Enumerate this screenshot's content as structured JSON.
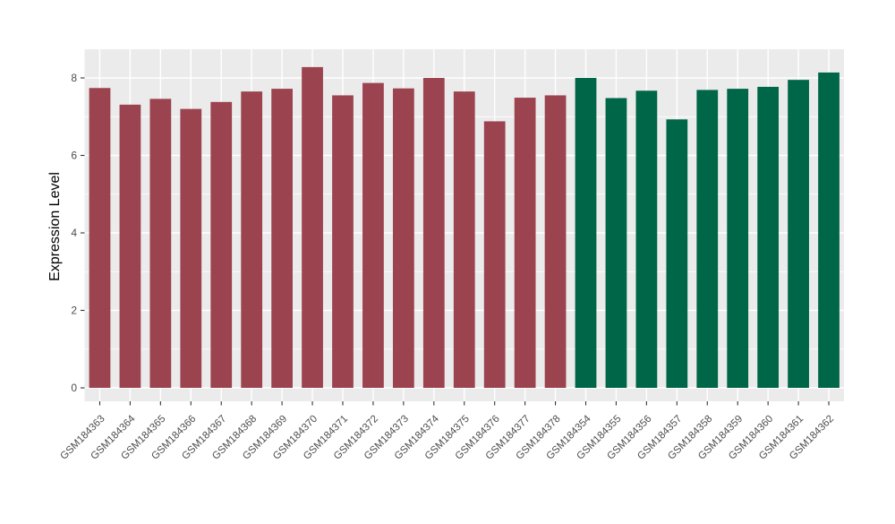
{
  "chart_data": {
    "type": "bar",
    "title": "",
    "xlabel": "",
    "ylabel": "Expression Level",
    "y_ticks": [
      0,
      2,
      4,
      6,
      8
    ],
    "ylim": [
      -0.35,
      8.74
    ],
    "grid": "on",
    "legend": "none",
    "panel_background": "#EBEBEB",
    "grid_color": "#FFFFFF",
    "axis_text_color": "#4D4D4D",
    "tick_mark_color": "#333333",
    "group_colors": {
      "red_group": "#9C4350",
      "green_group": "#006648"
    },
    "bars": [
      {
        "label": "GSM184363",
        "value": 7.74,
        "group": "red_group"
      },
      {
        "label": "GSM184364",
        "value": 7.31,
        "group": "red_group"
      },
      {
        "label": "GSM184365",
        "value": 7.46,
        "group": "red_group"
      },
      {
        "label": "GSM184366",
        "value": 7.2,
        "group": "red_group"
      },
      {
        "label": "GSM184367",
        "value": 7.38,
        "group": "red_group"
      },
      {
        "label": "GSM184368",
        "value": 7.65,
        "group": "red_group"
      },
      {
        "label": "GSM184369",
        "value": 7.72,
        "group": "red_group"
      },
      {
        "label": "GSM184370",
        "value": 8.28,
        "group": "red_group"
      },
      {
        "label": "GSM184371",
        "value": 7.55,
        "group": "red_group"
      },
      {
        "label": "GSM184372",
        "value": 7.87,
        "group": "red_group"
      },
      {
        "label": "GSM184373",
        "value": 7.73,
        "group": "red_group"
      },
      {
        "label": "GSM184374",
        "value": 8.0,
        "group": "red_group"
      },
      {
        "label": "GSM184375",
        "value": 7.65,
        "group": "red_group"
      },
      {
        "label": "GSM184376",
        "value": 6.88,
        "group": "red_group"
      },
      {
        "label": "GSM184377",
        "value": 7.49,
        "group": "red_group"
      },
      {
        "label": "GSM184378",
        "value": 7.55,
        "group": "red_group"
      },
      {
        "label": "GSM184354",
        "value": 8.0,
        "group": "green_group"
      },
      {
        "label": "GSM184355",
        "value": 7.48,
        "group": "green_group"
      },
      {
        "label": "GSM184356",
        "value": 7.67,
        "group": "green_group"
      },
      {
        "label": "GSM184357",
        "value": 6.93,
        "group": "green_group"
      },
      {
        "label": "GSM184358",
        "value": 7.69,
        "group": "green_group"
      },
      {
        "label": "GSM184359",
        "value": 7.72,
        "group": "green_group"
      },
      {
        "label": "GSM184360",
        "value": 7.77,
        "group": "green_group"
      },
      {
        "label": "GSM184361",
        "value": 7.95,
        "group": "green_group"
      },
      {
        "label": "GSM184362",
        "value": 8.14,
        "group": "green_group"
      }
    ]
  }
}
